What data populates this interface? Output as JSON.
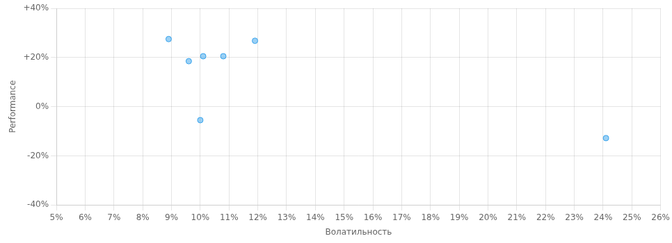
{
  "chart_data": {
    "type": "scatter",
    "x_label": "Волатильность",
    "y_label": "Performance",
    "x": [
      0.089,
      0.096,
      0.101,
      0.108,
      0.119,
      0.1,
      0.241
    ],
    "values": [
      0.275,
      0.185,
      0.205,
      0.205,
      0.268,
      -0.055,
      -0.128
    ],
    "xlim": [
      0.05,
      0.26
    ],
    "ylim": [
      -0.4,
      0.4
    ],
    "xticks": [
      {
        "value": 0.05,
        "label": "5%"
      },
      {
        "value": 0.06,
        "label": "6%"
      },
      {
        "value": 0.07,
        "label": "7%"
      },
      {
        "value": 0.08,
        "label": "8%"
      },
      {
        "value": 0.09,
        "label": "9%"
      },
      {
        "value": 0.1,
        "label": "10%"
      },
      {
        "value": 0.11,
        "label": "11%"
      },
      {
        "value": 0.12,
        "label": "12%"
      },
      {
        "value": 0.13,
        "label": "13%"
      },
      {
        "value": 0.14,
        "label": "14%"
      },
      {
        "value": 0.15,
        "label": "15%"
      },
      {
        "value": 0.16,
        "label": "16%"
      },
      {
        "value": 0.17,
        "label": "17%"
      },
      {
        "value": 0.18,
        "label": "18%"
      },
      {
        "value": 0.19,
        "label": "19%"
      },
      {
        "value": 0.2,
        "label": "20%"
      },
      {
        "value": 0.21,
        "label": "21%"
      },
      {
        "value": 0.22,
        "label": "22%"
      },
      {
        "value": 0.23,
        "label": "23%"
      },
      {
        "value": 0.24,
        "label": "24%"
      },
      {
        "value": 0.25,
        "label": "25%"
      },
      {
        "value": 0.26,
        "label": "26%"
      }
    ],
    "yticks": [
      {
        "value": -0.4,
        "label": "-40%"
      },
      {
        "value": -0.2,
        "label": "-20%"
      },
      {
        "value": 0.0,
        "label": "0%"
      },
      {
        "value": 0.2,
        "label": "+20%"
      },
      {
        "value": 0.4,
        "label": "+40%"
      }
    ],
    "grid": true
  }
}
